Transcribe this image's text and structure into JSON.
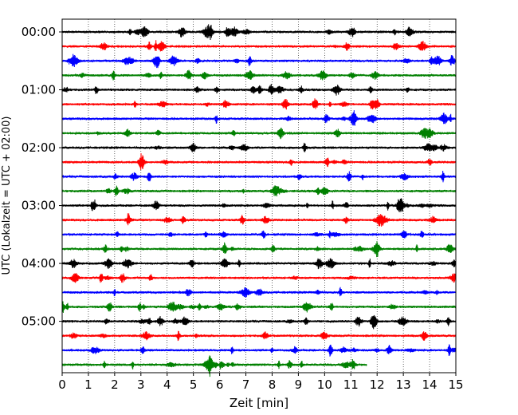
{
  "chart_data": {
    "type": "line",
    "title": "",
    "xlabel": "Zeit  [min]",
    "ylabel": "UTC (Lokalzeit = UTC + 02:00)",
    "xlim": [
      0,
      15
    ],
    "x_ticks": [
      0,
      1,
      2,
      3,
      4,
      5,
      6,
      7,
      8,
      9,
      10,
      11,
      12,
      13,
      14,
      15
    ],
    "x_tick_labels": [
      "0",
      "1",
      "2",
      "3",
      "4",
      "5",
      "6",
      "7",
      "8",
      "9",
      "10",
      "11",
      "12",
      "13",
      "14",
      "15"
    ],
    "y_tick_labels": [
      "00:00",
      "01:00",
      "02:00",
      "03:00",
      "04:00",
      "05:00"
    ],
    "grid": "vertical dotted lines at each minute",
    "trace_minutes": 15,
    "traces": [
      {
        "label": "00:00",
        "color": "#000000",
        "end_min": 15
      },
      {
        "label": "00:15",
        "color": "#ff0000",
        "end_min": 15
      },
      {
        "label": "00:30",
        "color": "#0000ff",
        "end_min": 15
      },
      {
        "label": "00:45",
        "color": "#008000",
        "end_min": 15
      },
      {
        "label": "01:00",
        "color": "#000000",
        "end_min": 15
      },
      {
        "label": "01:15",
        "color": "#ff0000",
        "end_min": 15
      },
      {
        "label": "01:30",
        "color": "#0000ff",
        "end_min": 15
      },
      {
        "label": "01:45",
        "color": "#008000",
        "end_min": 15
      },
      {
        "label": "02:00",
        "color": "#000000",
        "end_min": 15
      },
      {
        "label": "02:15",
        "color": "#ff0000",
        "end_min": 15
      },
      {
        "label": "02:30",
        "color": "#0000ff",
        "end_min": 15
      },
      {
        "label": "02:45",
        "color": "#008000",
        "end_min": 15
      },
      {
        "label": "03:00",
        "color": "#000000",
        "end_min": 15
      },
      {
        "label": "03:15",
        "color": "#ff0000",
        "end_min": 15
      },
      {
        "label": "03:30",
        "color": "#0000ff",
        "end_min": 15
      },
      {
        "label": "03:45",
        "color": "#008000",
        "end_min": 15
      },
      {
        "label": "04:00",
        "color": "#000000",
        "end_min": 15
      },
      {
        "label": "04:15",
        "color": "#ff0000",
        "end_min": 15
      },
      {
        "label": "04:30",
        "color": "#0000ff",
        "end_min": 15
      },
      {
        "label": "04:45",
        "color": "#008000",
        "end_min": 15
      },
      {
        "label": "05:00",
        "color": "#000000",
        "end_min": 15
      },
      {
        "label": "05:15",
        "color": "#ff0000",
        "end_min": 15
      },
      {
        "label": "05:30",
        "color": "#0000ff",
        "end_min": 15
      },
      {
        "label": "05:45",
        "color": "#008000",
        "end_min": 11.6
      }
    ]
  }
}
